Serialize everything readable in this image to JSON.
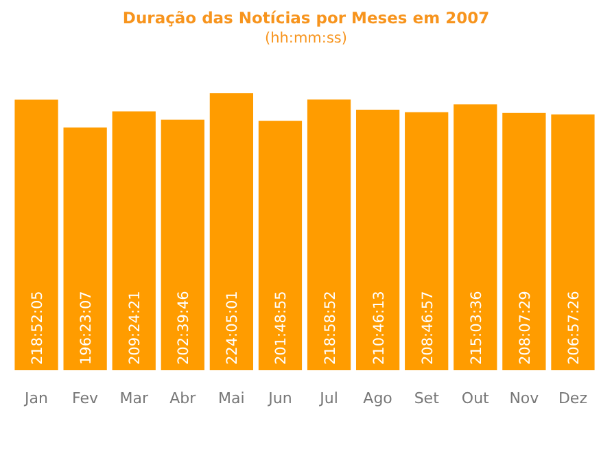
{
  "chart_data": {
    "type": "bar",
    "title": "Duração das Notícias por Meses em 2007",
    "subtitle": "(hh:mm:ss)",
    "categories": [
      "Jan",
      "Fev",
      "Mar",
      "Abr",
      "Mai",
      "Jun",
      "Jul",
      "Ago",
      "Set",
      "Out",
      "Nov",
      "Dez"
    ],
    "values": [
      218.8681,
      196.3853,
      209.4058,
      202.6628,
      224.0836,
      201.8153,
      218.9811,
      210.7703,
      208.7825,
      215.06,
      208.1247,
      206.9572
    ],
    "value_labels": [
      "218:52:05",
      "196:23:07",
      "209:24:21",
      "202:39:46",
      "224:05:01",
      "201:48:55",
      "218:58:52",
      "210:46:13",
      "208:46:57",
      "215:03:36",
      "208:07:29",
      "206:57:26"
    ],
    "color": "#ff9c00"
  }
}
